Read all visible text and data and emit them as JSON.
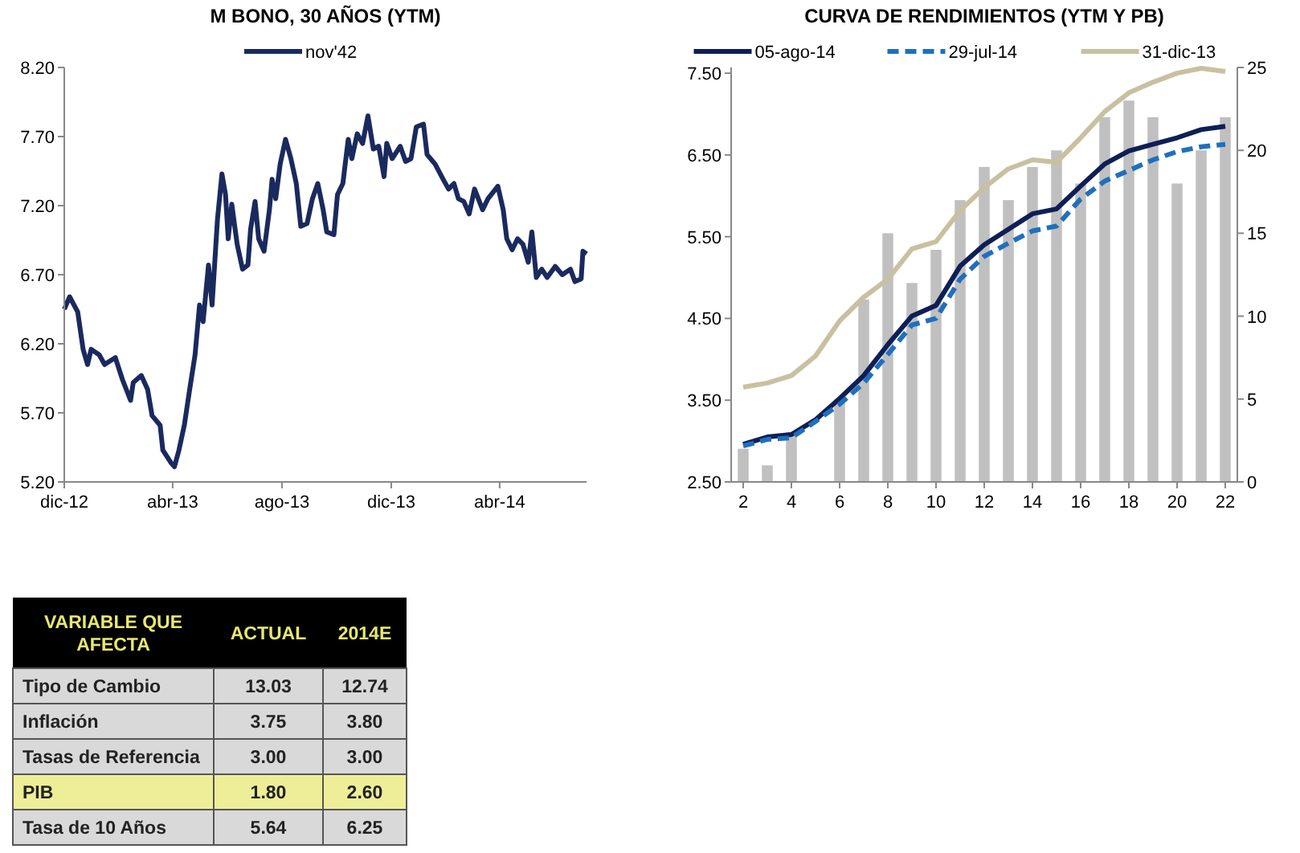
{
  "chart_data": [
    {
      "type": "line",
      "title": "M BONO, 30 AÑOS (YTM)",
      "legend": "top",
      "grid": false,
      "marker": "none",
      "xlim": [
        "2012-12-01",
        "2014-07-07"
      ],
      "xticks": [
        {
          "value": "2012-12-01",
          "label": "dic-12"
        },
        {
          "value": "2013-04-01",
          "label": "abr-13"
        },
        {
          "value": "2013-08-01",
          "label": "ago-13"
        },
        {
          "value": "2013-12-01",
          "label": "dic-13"
        },
        {
          "value": "2014-04-01",
          "label": "abr-14"
        }
      ],
      "ylim": [
        5.2,
        8.2
      ],
      "yticks": [
        {
          "value": 5.2,
          "label": "5.20"
        },
        {
          "value": 5.7,
          "label": "5.70"
        },
        {
          "value": 6.2,
          "label": "6.20"
        },
        {
          "value": 6.7,
          "label": "6.70"
        },
        {
          "value": 7.2,
          "label": "7.20"
        },
        {
          "value": 7.7,
          "label": "7.70"
        },
        {
          "value": 8.2,
          "label": "8.20"
        }
      ],
      "series": [
        {
          "name": "nov'42",
          "color": "#1a2a5e",
          "line_style": "solid",
          "x": [
            "2012-12-01",
            "2012-12-07",
            "2012-12-16",
            "2012-12-22",
            "2012-12-27",
            "2012-12-31",
            "2013-01-09",
            "2013-01-15",
            "2013-01-27",
            "2013-02-04",
            "2013-02-13",
            "2013-02-16",
            "2013-02-25",
            "2013-03-04",
            "2013-03-09",
            "2013-03-18",
            "2013-03-21",
            "2013-03-30",
            "2013-04-03",
            "2013-04-08",
            "2013-04-14",
            "2013-04-20",
            "2013-04-26",
            "2013-05-01",
            "2013-05-05",
            "2013-05-11",
            "2013-05-15",
            "2013-05-21",
            "2013-05-26",
            "2013-05-30",
            "2013-06-02",
            "2013-06-06",
            "2013-06-12",
            "2013-06-18",
            "2013-06-24",
            "2013-06-27",
            "2013-07-02",
            "2013-07-06",
            "2013-07-12",
            "2013-07-18",
            "2013-07-21",
            "2013-07-25",
            "2013-07-30",
            "2013-08-05",
            "2013-08-11",
            "2013-08-17",
            "2013-08-22",
            "2013-08-29",
            "2013-09-04",
            "2013-09-10",
            "2013-09-16",
            "2013-09-20",
            "2013-09-28",
            "2013-10-02",
            "2013-10-08",
            "2013-10-14",
            "2013-10-18",
            "2013-10-24",
            "2013-10-30",
            "2013-11-05",
            "2013-11-11",
            "2013-11-17",
            "2013-11-23",
            "2013-11-26",
            "2013-12-02",
            "2013-12-11",
            "2013-12-17",
            "2013-12-23",
            "2013-12-29",
            "2014-01-06",
            "2014-01-10",
            "2014-01-19",
            "2014-01-28",
            "2014-02-03",
            "2014-02-09",
            "2014-02-14",
            "2014-02-20",
            "2014-02-26",
            "2014-03-04",
            "2014-03-13",
            "2014-03-19",
            "2014-03-30",
            "2014-04-05",
            "2014-04-09",
            "2014-04-15",
            "2014-04-21",
            "2014-04-27",
            "2014-05-03",
            "2014-05-07",
            "2014-05-12",
            "2014-05-18",
            "2014-05-24",
            "2014-06-02",
            "2014-06-10",
            "2014-06-19",
            "2014-06-24",
            "2014-07-01",
            "2014-07-03",
            "2014-07-07"
          ],
          "values": [
            6.45,
            6.54,
            6.43,
            6.16,
            6.05,
            6.16,
            6.12,
            6.05,
            6.1,
            5.94,
            5.79,
            5.92,
            5.97,
            5.87,
            5.68,
            5.61,
            5.43,
            5.34,
            5.31,
            5.43,
            5.61,
            5.87,
            6.12,
            6.48,
            6.36,
            6.77,
            6.48,
            7.1,
            7.43,
            7.28,
            6.96,
            7.21,
            6.92,
            6.74,
            6.77,
            7.03,
            7.23,
            6.96,
            6.87,
            7.17,
            7.39,
            7.25,
            7.5,
            7.68,
            7.54,
            7.36,
            7.05,
            7.07,
            7.25,
            7.36,
            7.17,
            7.01,
            6.99,
            7.28,
            7.36,
            7.68,
            7.54,
            7.72,
            7.65,
            7.85,
            7.61,
            7.63,
            7.41,
            7.65,
            7.54,
            7.63,
            7.52,
            7.54,
            7.77,
            7.79,
            7.57,
            7.5,
            7.39,
            7.32,
            7.36,
            7.25,
            7.23,
            7.14,
            7.32,
            7.17,
            7.25,
            7.34,
            7.17,
            6.96,
            6.88,
            6.96,
            6.92,
            6.79,
            7.01,
            6.68,
            6.74,
            6.68,
            6.76,
            6.7,
            6.74,
            6.65,
            6.67,
            6.87,
            6.85
          ]
        }
      ]
    },
    {
      "type": "line",
      "title": "CURVA DE RENDIMIENTOS (YTM Y PB)",
      "legend": "top",
      "grid": false,
      "marker": "none",
      "xlim": [
        1.5,
        22.5
      ],
      "xticks": [
        2,
        4,
        6,
        8,
        10,
        12,
        14,
        16,
        18,
        20,
        22
      ],
      "ylim": [
        2.5,
        7.57
      ],
      "yticks": [
        {
          "value": 2.5,
          "label": "2.50"
        },
        {
          "value": 3.5,
          "label": "3.50"
        },
        {
          "value": 4.5,
          "label": "4.50"
        },
        {
          "value": 5.5,
          "label": "5.50"
        },
        {
          "value": 6.5,
          "label": "6.50"
        },
        {
          "value": 7.5,
          "label": "7.50"
        }
      ],
      "y2lim": [
        0,
        25
      ],
      "y2ticks": [
        0,
        5,
        10,
        15,
        20,
        25
      ],
      "x": [
        2,
        3,
        4,
        5,
        6,
        7,
        8,
        9,
        10,
        11,
        12,
        13,
        14,
        15,
        16,
        17,
        18,
        19,
        20,
        21,
        22
      ],
      "series": [
        {
          "type": "bar",
          "axis": "y2",
          "color": "#c0c0c0",
          "values": [
            2,
            1,
            3,
            null,
            5,
            11,
            15,
            12,
            14,
            17,
            19,
            17,
            19,
            20,
            18,
            22,
            23,
            22,
            18,
            20,
            22
          ]
        },
        {
          "name": "05-ago-14",
          "color": "#0d1f55",
          "line_style": "solid",
          "values": [
            2.96,
            3.05,
            3.08,
            3.26,
            3.52,
            3.8,
            4.18,
            4.53,
            4.66,
            5.14,
            5.4,
            5.59,
            5.78,
            5.84,
            6.12,
            6.39,
            6.55,
            6.63,
            6.71,
            6.81,
            6.85
          ]
        },
        {
          "name": "29-jul-14",
          "color": "#1f6fbf",
          "line_style": "dashed",
          "values": [
            2.94,
            3.02,
            3.04,
            3.24,
            3.45,
            3.71,
            4.06,
            4.42,
            4.5,
            4.98,
            5.26,
            5.42,
            5.57,
            5.63,
            5.96,
            6.18,
            6.31,
            6.44,
            6.54,
            6.6,
            6.63
          ]
        },
        {
          "name": "31-dic-13",
          "color": "#c8c0a0",
          "line_style": "solid",
          "values": [
            3.66,
            3.71,
            3.8,
            4.04,
            4.47,
            4.76,
            4.98,
            5.35,
            5.44,
            5.82,
            6.1,
            6.33,
            6.44,
            6.41,
            6.71,
            7.03,
            7.26,
            7.39,
            7.5,
            7.56,
            7.52
          ]
        }
      ]
    },
    {
      "type": "other",
      "categories": [
        "VARIABLE QUE AFECTA",
        "ACTUAL",
        "2014E"
      ],
      "y_categories": [
        "Tipo de Cambio",
        "Inflación",
        "Tasas de Referencia",
        "PIB",
        "Tasa de 10 Años"
      ],
      "cell_labels": [
        [
          "13.03",
          "12.74"
        ],
        [
          "3.75",
          "3.80"
        ],
        [
          "3.00",
          "3.00"
        ],
        [
          "1.80",
          "2.60"
        ],
        [
          "5.64",
          "6.25"
        ]
      ],
      "colors": [
        "#000000",
        "#d9d9d9",
        "#d9d9d9",
        "#d9d9d9",
        "#eeee99",
        "#d9d9d9"
      ]
    }
  ]
}
